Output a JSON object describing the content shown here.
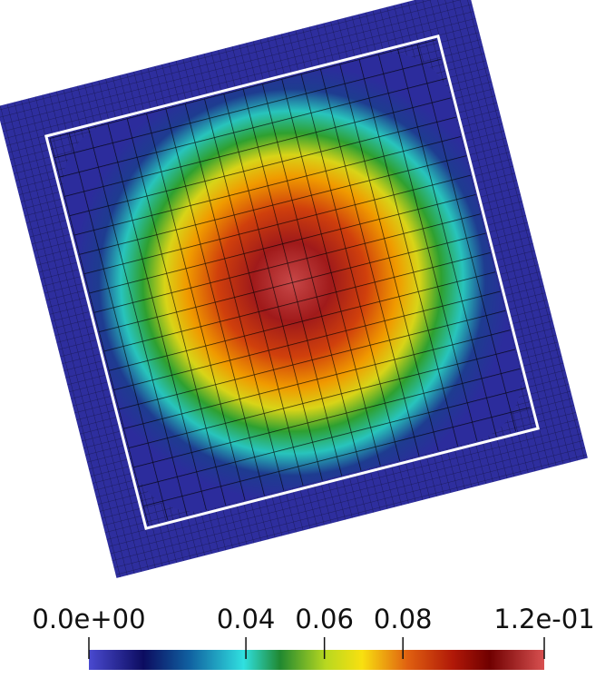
{
  "colorbar": {
    "lim": [
      0,
      0.116
    ],
    "ticks": [
      {
        "value": 0,
        "label": "0.0e+00"
      },
      0.04,
      0.06,
      0.08,
      {
        "value": 0.116,
        "label": "1.2e-01"
      }
    ]
  }
}
